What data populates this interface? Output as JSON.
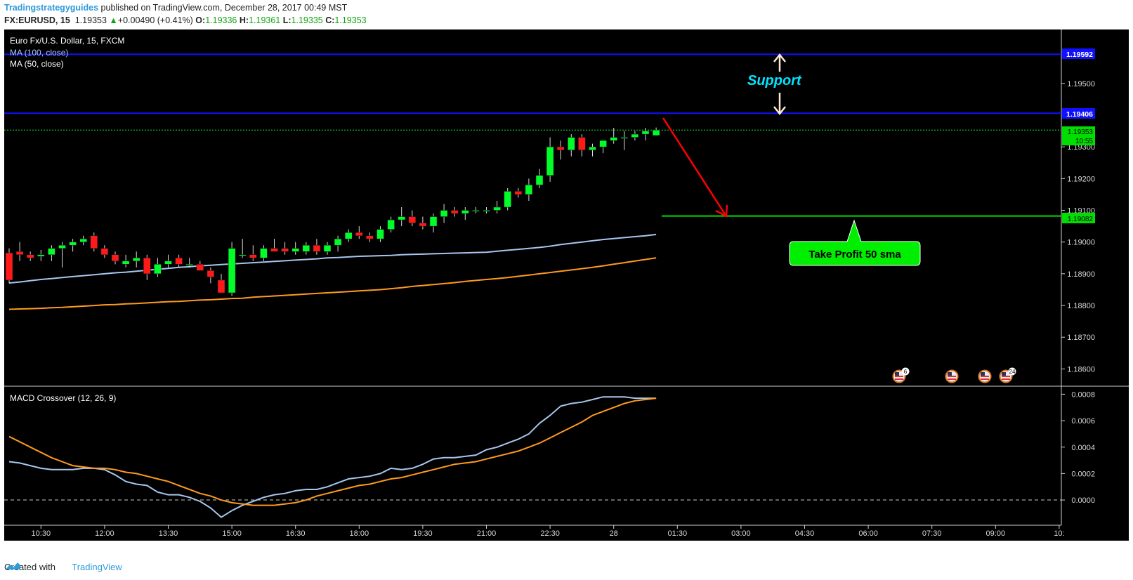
{
  "header": {
    "author": "Tradingstrategyguides",
    "published_text": "published on TradingView.com, December 28, 2017 00:49 MST",
    "symbol": "FX:EURUSD, 15",
    "last": "1.19353",
    "change": "+0.00490 (+0.41%)",
    "o_label": "O:",
    "o": "1.19336",
    "h_label": "H:",
    "h": "1.19361",
    "l_label": "L:",
    "l": "1.19335",
    "c_label": "C:",
    "c": "1.19353"
  },
  "legend": {
    "title": "Euro Fx/U.S. Dollar, 15, FXCM",
    "ma100": "MA (100, close)",
    "ma50": "MA (50, close)",
    "macd": "MACD Crossover (12, 26, 9)"
  },
  "annotations": {
    "support": "Support",
    "take_profit": "Take Profit 50 sma",
    "event_counts": [
      "6",
      "24"
    ]
  },
  "price_badges": {
    "top_line": "1.19592",
    "bottom_line": "1.19406",
    "last": "1.19353",
    "countdown": "10:55",
    "target": "1.19082"
  },
  "footer": {
    "created_with": "Created with",
    "brand": "TradingView"
  },
  "colors": {
    "background": "#000000",
    "up_candle": "#00ff28",
    "down_candle": "#ff1a1a",
    "ma100": "#a6c6ee",
    "ma50": "#ff9a1f",
    "support_lines": "#1010ff",
    "target_line": "#00dd00",
    "arrow": "#ff0000",
    "support_text": "#00e5ff"
  },
  "chart_data": [
    {
      "type": "candlestick",
      "title": "Euro Fx/U.S. Dollar, 15, FXCM",
      "x_ticks": [
        "10:30",
        "12:00",
        "13:30",
        "15:00",
        "16:30",
        "18:00",
        "19:30",
        "21:00",
        "22:30",
        "28",
        "01:30",
        "03:00",
        "04:30",
        "06:00",
        "07:30",
        "09:00",
        "10:"
      ],
      "y_ticks": [
        "1.19500",
        "1.19300",
        "1.19200",
        "1.19100",
        "1.19000",
        "1.18900",
        "1.18800",
        "1.18700",
        "1.18600"
      ],
      "ylim": [
        1.1855,
        1.1967
      ],
      "ohlc": [
        [
          1.18966,
          1.1898,
          1.1887,
          1.1888
        ],
        [
          1.1897,
          1.19,
          1.1894,
          1.1896
        ],
        [
          1.1896,
          1.1897,
          1.1894,
          1.1895
        ],
        [
          1.18955,
          1.18975,
          1.1894,
          1.1896
        ],
        [
          1.1896,
          1.1899,
          1.1894,
          1.1898
        ],
        [
          1.1898,
          1.19,
          1.1892,
          1.1899
        ],
        [
          1.1899,
          1.1901,
          1.1897,
          1.19
        ],
        [
          1.19,
          1.1902,
          1.1899,
          1.1901
        ],
        [
          1.1902,
          1.1903,
          1.1897,
          1.1898
        ],
        [
          1.1898,
          1.1899,
          1.1895,
          1.1896
        ],
        [
          1.1896,
          1.1897,
          1.1893,
          1.1894
        ],
        [
          1.1893,
          1.1896,
          1.1892,
          1.1894
        ],
        [
          1.1894,
          1.1897,
          1.1892,
          1.1895
        ],
        [
          1.1895,
          1.1896,
          1.1888,
          1.189
        ],
        [
          1.189,
          1.1895,
          1.1889,
          1.1893
        ],
        [
          1.1893,
          1.1896,
          1.1892,
          1.1894
        ],
        [
          1.1895,
          1.1896,
          1.1892,
          1.1893
        ],
        [
          1.1893,
          1.1895,
          1.1892,
          1.1893
        ],
        [
          1.1893,
          1.1894,
          1.1891,
          1.1891
        ],
        [
          1.1891,
          1.1892,
          1.1887,
          1.1889
        ],
        [
          1.1888,
          1.189,
          1.1884,
          1.1884
        ],
        [
          1.1884,
          1.19,
          1.1883,
          1.1898
        ],
        [
          1.1896,
          1.1901,
          1.1895,
          1.1896
        ],
        [
          1.1896,
          1.1899,
          1.1894,
          1.1895
        ],
        [
          1.1895,
          1.1899,
          1.1894,
          1.1898
        ],
        [
          1.1898,
          1.1901,
          1.1897,
          1.1897
        ],
        [
          1.1898,
          1.19,
          1.1896,
          1.1897
        ],
        [
          1.1897,
          1.19,
          1.1896,
          1.1898
        ],
        [
          1.1897,
          1.19,
          1.1896,
          1.1899
        ],
        [
          1.1899,
          1.1901,
          1.1896,
          1.1897
        ],
        [
          1.1897,
          1.19,
          1.1896,
          1.1899
        ],
        [
          1.1899,
          1.1902,
          1.1897,
          1.1901
        ],
        [
          1.1901,
          1.1904,
          1.19,
          1.1903
        ],
        [
          1.1903,
          1.1905,
          1.1901,
          1.1902
        ],
        [
          1.1902,
          1.1903,
          1.19,
          1.1901
        ],
        [
          1.1901,
          1.1905,
          1.19,
          1.1904
        ],
        [
          1.1904,
          1.1908,
          1.1903,
          1.1907
        ],
        [
          1.1907,
          1.1911,
          1.1905,
          1.1908
        ],
        [
          1.1908,
          1.191,
          1.1905,
          1.1906
        ],
        [
          1.1906,
          1.1908,
          1.1904,
          1.1905
        ],
        [
          1.1905,
          1.1909,
          1.1903,
          1.1908
        ],
        [
          1.1908,
          1.1912,
          1.1906,
          1.191
        ],
        [
          1.191,
          1.1911,
          1.1908,
          1.1909
        ],
        [
          1.1909,
          1.1911,
          1.1907,
          1.191
        ],
        [
          1.191,
          1.1911,
          1.1909,
          1.191
        ],
        [
          1.191,
          1.1911,
          1.1909,
          1.191
        ],
        [
          1.191,
          1.1913,
          1.1909,
          1.1911
        ],
        [
          1.1911,
          1.1917,
          1.191,
          1.1916
        ],
        [
          1.1916,
          1.1917,
          1.1914,
          1.1915
        ],
        [
          1.1915,
          1.192,
          1.1913,
          1.1918
        ],
        [
          1.1918,
          1.1923,
          1.1917,
          1.1921
        ],
        [
          1.1921,
          1.1933,
          1.1919,
          1.193
        ],
        [
          1.193,
          1.1932,
          1.1926,
          1.1929
        ],
        [
          1.1929,
          1.1934,
          1.1927,
          1.1933
        ],
        [
          1.1933,
          1.1934,
          1.1927,
          1.1929
        ],
        [
          1.1929,
          1.1931,
          1.1927,
          1.193
        ],
        [
          1.193,
          1.1932,
          1.1928,
          1.1932
        ],
        [
          1.1932,
          1.1936,
          1.1931,
          1.1933
        ],
        [
          1.1933,
          1.1935,
          1.1929,
          1.1933
        ],
        [
          1.1933,
          1.1935,
          1.1932,
          1.1934
        ],
        [
          1.1934,
          1.1936,
          1.1932,
          1.1935
        ],
        [
          1.19336,
          1.19361,
          1.19335,
          1.19353
        ]
      ],
      "ma100": [
        1.18871,
        1.18874,
        1.18878,
        1.18882,
        1.18885,
        1.18888,
        1.18891,
        1.18894,
        1.18897,
        1.189,
        1.18903,
        1.18905,
        1.18908,
        1.18911,
        1.18914,
        1.18917,
        1.1892,
        1.18922,
        1.18925,
        1.18927,
        1.18929,
        1.18931,
        1.18933,
        1.18935,
        1.18937,
        1.18939,
        1.18941,
        1.18943,
        1.18945,
        1.18947,
        1.1895,
        1.18951,
        1.18953,
        1.18955,
        1.18956,
        1.18957,
        1.18958,
        1.1896,
        1.18961,
        1.18962,
        1.18963,
        1.18964,
        1.18965,
        1.18966,
        1.18967,
        1.18968,
        1.18971,
        1.18974,
        1.18977,
        1.1898,
        1.18983,
        1.18987,
        1.18992,
        1.18996,
        1.19,
        1.19004,
        1.19008,
        1.19011,
        1.19014,
        1.19017,
        1.1902,
        1.19024
      ],
      "ma50": [
        1.18788,
        1.18789,
        1.1879,
        1.18791,
        1.18793,
        1.18794,
        1.18796,
        1.18798,
        1.188,
        1.18802,
        1.18803,
        1.18805,
        1.18806,
        1.18808,
        1.1881,
        1.18812,
        1.18813,
        1.18815,
        1.18817,
        1.18818,
        1.1882,
        1.18822,
        1.18823,
        1.18826,
        1.18828,
        1.1883,
        1.18832,
        1.18834,
        1.18836,
        1.18838,
        1.1884,
        1.18842,
        1.18844,
        1.18846,
        1.18848,
        1.1885,
        1.18853,
        1.18856,
        1.1886,
        1.18863,
        1.18866,
        1.18869,
        1.18872,
        1.18876,
        1.18879,
        1.18882,
        1.18885,
        1.18888,
        1.18892,
        1.18896,
        1.189,
        1.18904,
        1.18908,
        1.18912,
        1.18916,
        1.1892,
        1.18925,
        1.1893,
        1.18935,
        1.1894,
        1.18945,
        1.1895
      ],
      "horizontal_lines": [
        {
          "price": 1.19592,
          "name": "support-top"
        },
        {
          "price": 1.19406,
          "name": "support-bottom"
        },
        {
          "price": 1.19353,
          "name": "last-price"
        },
        {
          "price": 1.19082,
          "name": "take-profit"
        }
      ]
    },
    {
      "type": "line",
      "title": "MACD Crossover (12, 26, 9)",
      "y_ticks": [
        "0.0008",
        "0.0006",
        "0.0004",
        "0.0002",
        "0.0000"
      ],
      "ylim": [
        -0.00018,
        0.00085
      ],
      "macd": [
        0.00029,
        0.00028,
        0.00026,
        0.00024,
        0.00023,
        0.00023,
        0.00023,
        0.00024,
        0.00024,
        0.00023,
        0.00019,
        0.00014,
        0.00012,
        0.00011,
        6e-05,
        4e-05,
        4e-05,
        2e-05,
        -1e-05,
        -6e-05,
        -0.00013,
        -8e-05,
        -4e-05,
        -1e-05,
        2e-05,
        4e-05,
        5e-05,
        7e-05,
        8e-05,
        8e-05,
        0.0001,
        0.00013,
        0.00016,
        0.00017,
        0.00018,
        0.0002,
        0.00024,
        0.00023,
        0.00024,
        0.00027,
        0.00031,
        0.00032,
        0.00032,
        0.00033,
        0.00034,
        0.00038,
        0.0004,
        0.00043,
        0.00046,
        0.0005,
        0.00058,
        0.00064,
        0.00071,
        0.00073,
        0.00074,
        0.00076,
        0.00078,
        0.00078,
        0.00078,
        0.00077,
        0.00077,
        0.00077
      ],
      "signal": [
        0.00048,
        0.00044,
        0.0004,
        0.00036,
        0.00032,
        0.00029,
        0.00026,
        0.00025,
        0.00024,
        0.00024,
        0.00023,
        0.00021,
        0.0002,
        0.00018,
        0.00016,
        0.00014,
        0.00011,
        8e-05,
        5e-05,
        3e-05,
        0.0,
        -2e-05,
        -3e-05,
        -4e-05,
        -4e-05,
        -4e-05,
        -3e-05,
        -2e-05,
        0.0,
        3e-05,
        5e-05,
        7e-05,
        9e-05,
        0.00011,
        0.00012,
        0.00014,
        0.00016,
        0.00017,
        0.00019,
        0.00021,
        0.00023,
        0.00025,
        0.00027,
        0.00028,
        0.00029,
        0.00031,
        0.00033,
        0.00035,
        0.00037,
        0.0004,
        0.00043,
        0.00047,
        0.00051,
        0.00055,
        0.00059,
        0.00064,
        0.00067,
        0.0007,
        0.00073,
        0.00075,
        0.00076,
        0.00077
      ]
    }
  ]
}
